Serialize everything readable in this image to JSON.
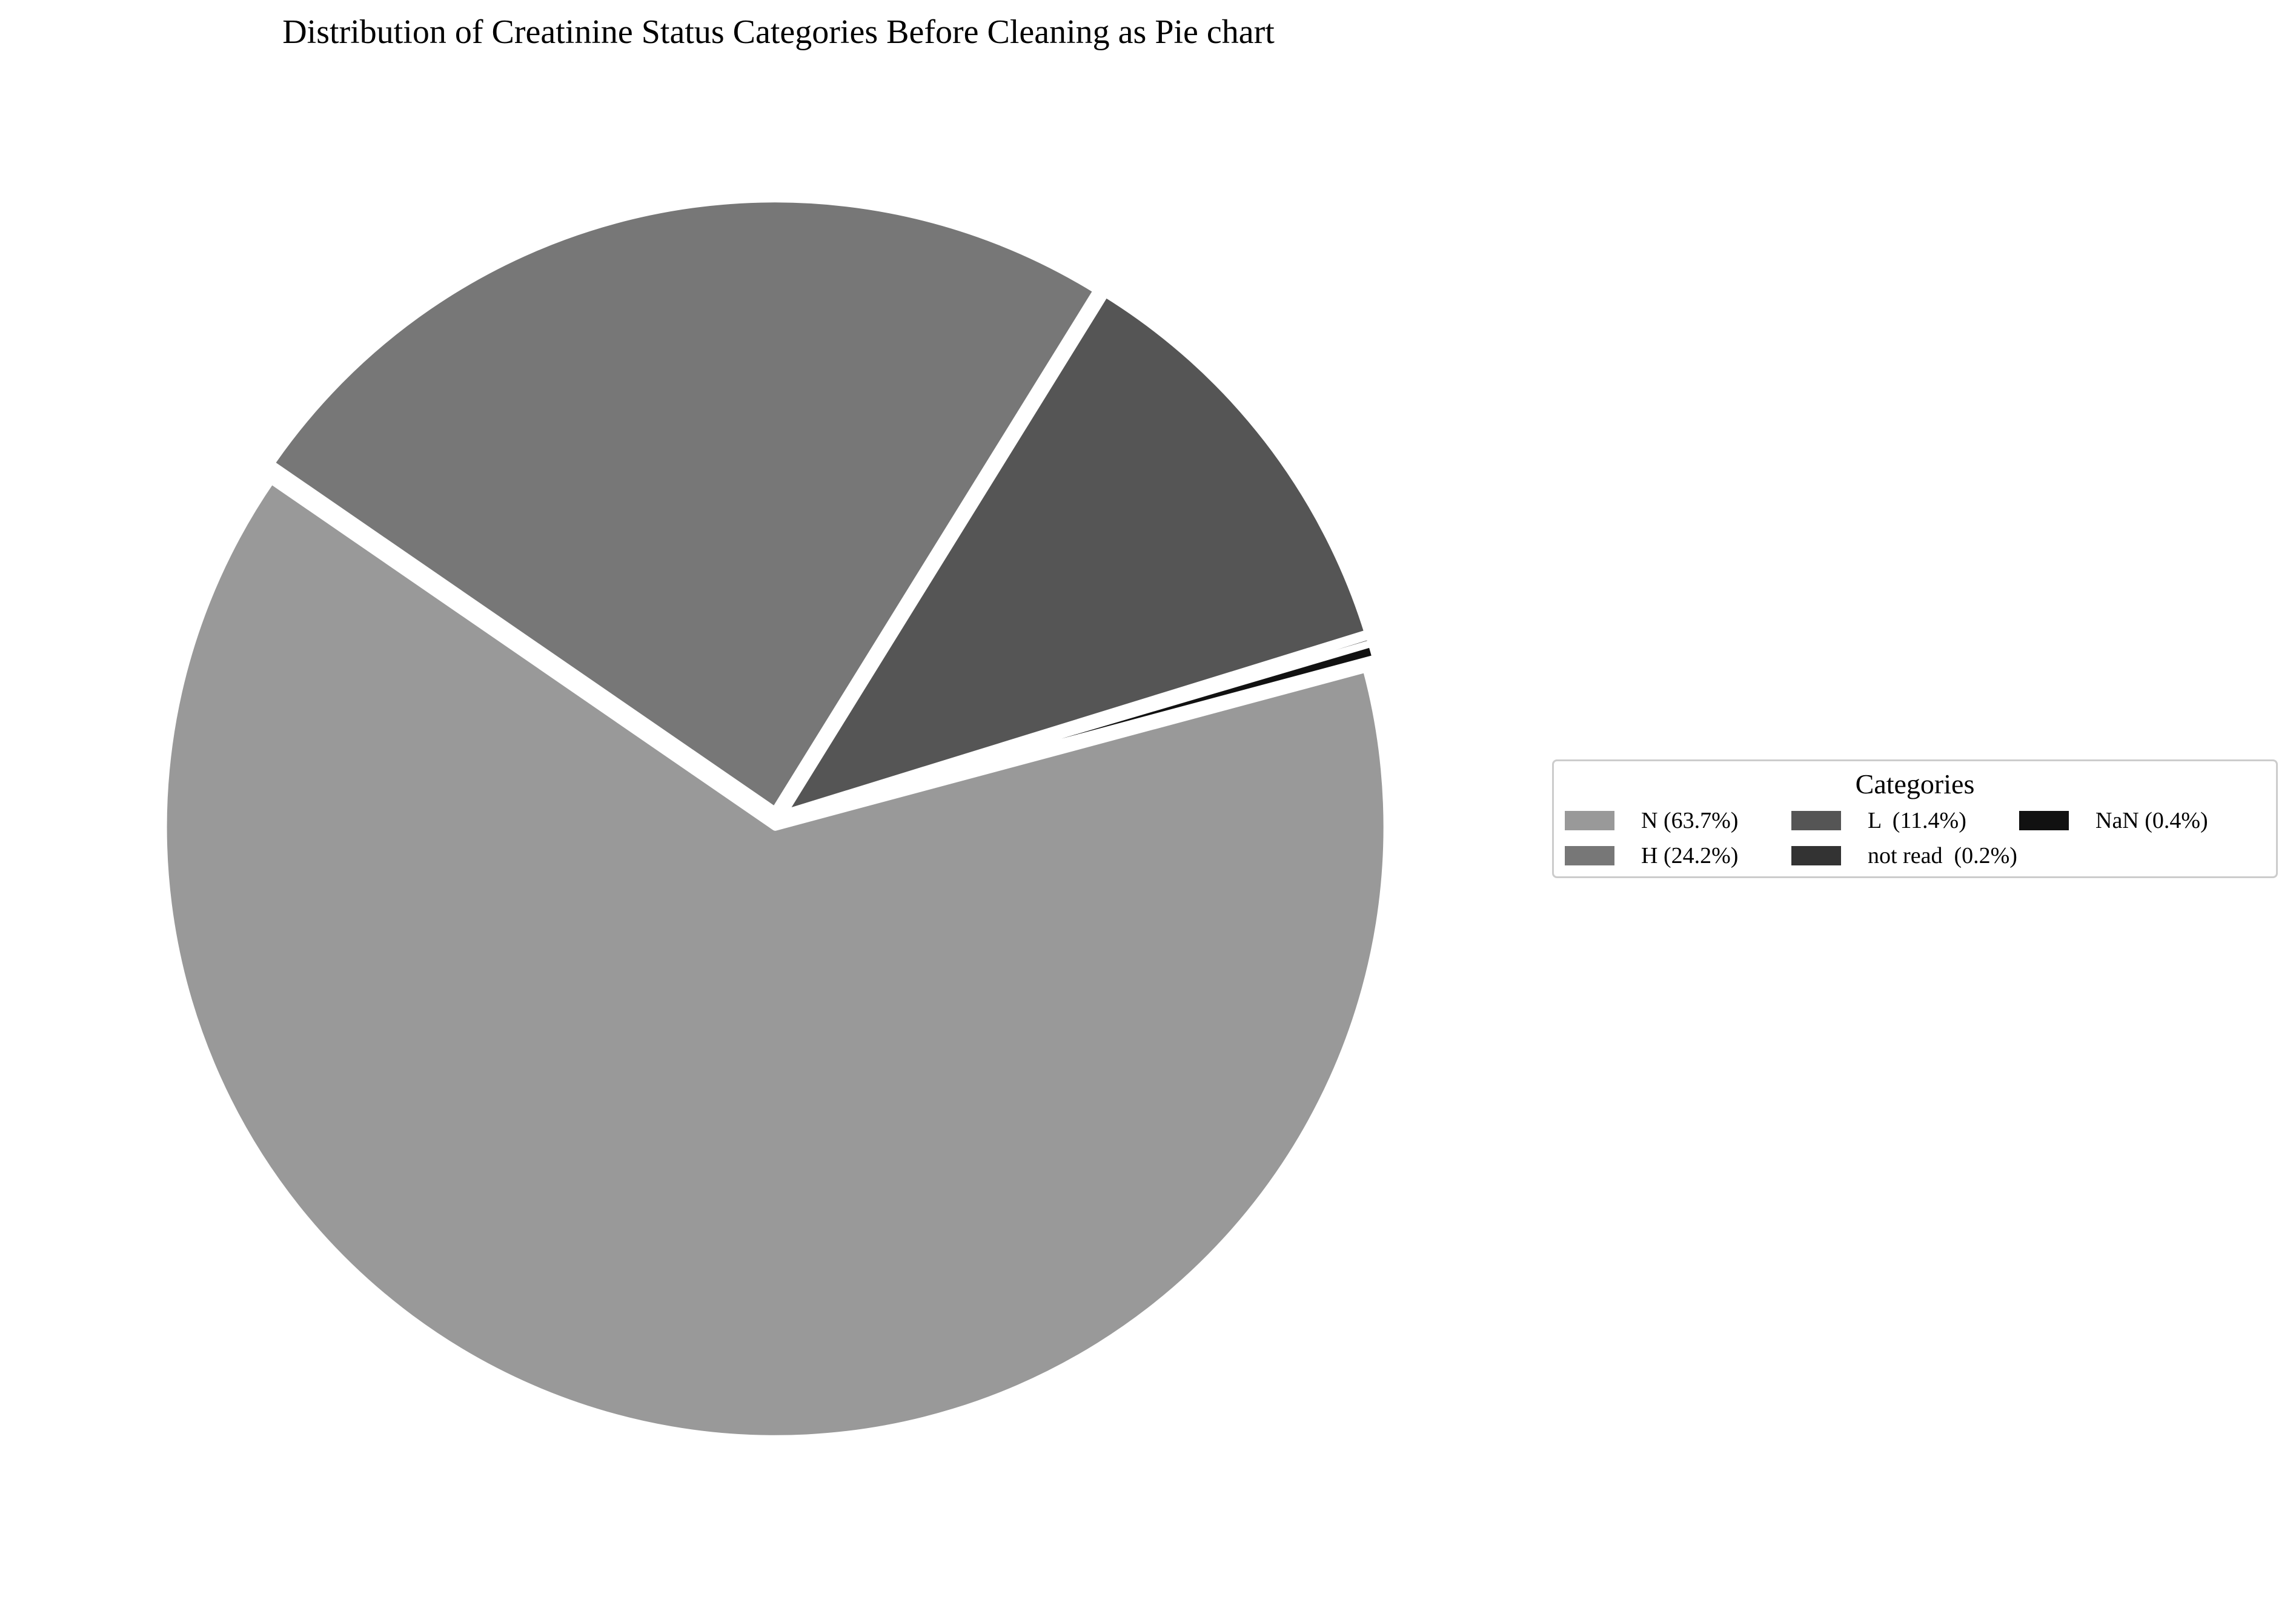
{
  "chart_data": {
    "type": "pie",
    "title": "Distribution of Creatinine Status Categories Before Cleaning as Pie chart",
    "slices": [
      {
        "category": "N",
        "percent": 63.7,
        "label": "N (63.7%)",
        "color": "#999999"
      },
      {
        "category": "H",
        "percent": 24.2,
        "label": "H (24.2%)",
        "color": "#777777"
      },
      {
        "category": "L ",
        "percent": 11.4,
        "label": "L  (11.4%)",
        "color": "#555555"
      },
      {
        "category": "not read ",
        "percent": 0.2,
        "label": "not read  (0.2%)",
        "color": "#333333"
      },
      {
        "category": "NaN",
        "percent": 0.4,
        "label": "NaN (0.4%)",
        "color": "#111111"
      }
    ],
    "legend": {
      "title": "Categories",
      "placement": "right",
      "columns": 3
    },
    "edge_color": "#ffffff"
  }
}
